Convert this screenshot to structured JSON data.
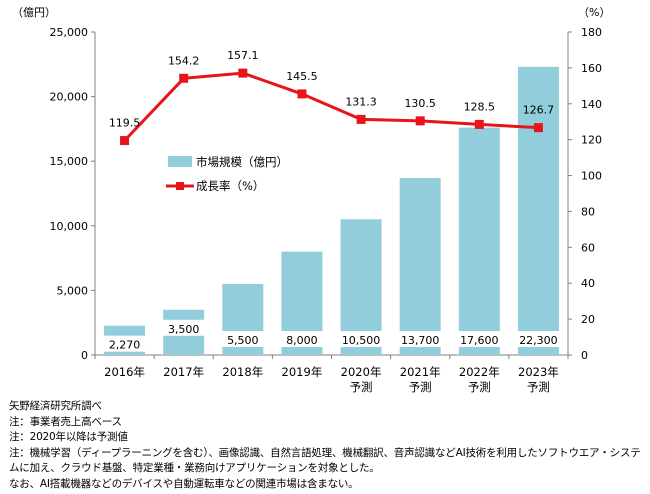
{
  "chart_data": {
    "type": "bar+line",
    "categories": [
      [
        "2016年"
      ],
      [
        "2017年"
      ],
      [
        "2018年"
      ],
      [
        "2019年"
      ],
      [
        "2020年",
        "予測"
      ],
      [
        "2021年",
        "予測"
      ],
      [
        "2022年",
        "予測"
      ],
      [
        "2023年",
        "予測"
      ]
    ],
    "left_axis": {
      "unit_label": "（億円）",
      "min": 0,
      "max": 25000,
      "step": 5000,
      "ticks": [
        "0",
        "5,000",
        "10,000",
        "15,000",
        "20,000",
        "25,000"
      ]
    },
    "right_axis": {
      "unit_label": "（%）",
      "min": 0,
      "max": 180,
      "step": 20,
      "ticks": [
        "0",
        "20",
        "40",
        "60",
        "80",
        "100",
        "120",
        "140",
        "160",
        "180"
      ]
    },
    "series": [
      {
        "name": "市場規模（億円）",
        "type": "bar",
        "axis": "left",
        "color": "#92cddc",
        "values": [
          2270,
          3500,
          5500,
          8000,
          10500,
          13700,
          17600,
          22300
        ],
        "labels": [
          "2,270",
          "3,500",
          "5,500",
          "8,000",
          "10,500",
          "13,700",
          "17,600",
          "22,300"
        ]
      },
      {
        "name": "成長率（%）",
        "type": "line",
        "axis": "right",
        "color": "#e8141a",
        "values": [
          119.5,
          154.2,
          157.1,
          145.5,
          131.3,
          130.5,
          128.5,
          126.7
        ],
        "labels": [
          "119.5",
          "154.2",
          "157.1",
          "145.5",
          "131.3",
          "130.5",
          "128.5",
          "126.7"
        ]
      }
    ],
    "legend": {
      "placement": "center-left"
    },
    "grid": false
  },
  "notes": [
    "矢野経済研究所調べ",
    "注：事業者売上高ベース",
    "注：2020年以降は予測値",
    "注：機械学習（ディープラーニングを含む）、画像認識、自然言語処理、機械翻訳、音声認識などAI技術を利用したソフトウエア・システムに加え、クラウド基盤、特定業種・業務向けアプリケーションを対象とした。",
    "なお、AI搭載機器などのデバイスや自動運転車などの関連市場は含まない。"
  ]
}
